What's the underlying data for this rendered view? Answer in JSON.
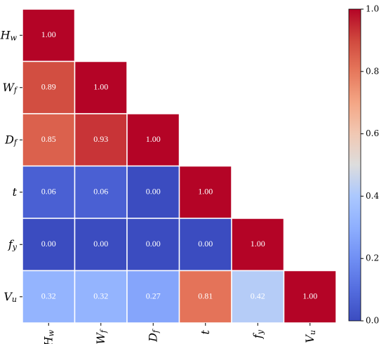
{
  "chart_data": {
    "type": "heatmap",
    "variables": [
      {
        "base": "H",
        "sub": "w"
      },
      {
        "base": "W",
        "sub": "f"
      },
      {
        "base": "D",
        "sub": "f"
      },
      {
        "base": "t",
        "sub": ""
      },
      {
        "base": "f",
        "sub": "y"
      },
      {
        "base": "V",
        "sub": "u"
      }
    ],
    "matrix": [
      [
        1.0,
        null,
        null,
        null,
        null,
        null
      ],
      [
        0.89,
        1.0,
        null,
        null,
        null,
        null
      ],
      [
        0.85,
        0.93,
        1.0,
        null,
        null,
        null
      ],
      [
        0.06,
        0.06,
        0.0,
        1.0,
        null,
        null
      ],
      [
        0.0,
        0.0,
        0.0,
        0.0,
        1.0,
        null
      ],
      [
        0.32,
        0.32,
        0.27,
        0.81,
        0.42,
        1.0
      ]
    ],
    "labels": [
      [
        "1.00",
        "",
        "",
        "",
        "",
        ""
      ],
      [
        "0.89",
        "1.00",
        "",
        "",
        "",
        ""
      ],
      [
        "0.85",
        "0.93",
        "1.00",
        "",
        "",
        ""
      ],
      [
        "0.06",
        "0.06",
        "0.00",
        "1.00",
        "",
        ""
      ],
      [
        "0.00",
        "0.00",
        "0.00",
        "0.00",
        "1.00",
        ""
      ],
      [
        "0.32",
        "0.32",
        "0.27",
        "0.81",
        "0.42",
        "1.00"
      ]
    ],
    "colormap": "coolwarm",
    "colorbar": {
      "range": [
        0.0,
        1.0
      ],
      "ticks": [
        0.0,
        0.2,
        0.4,
        0.6,
        0.8,
        1.0
      ],
      "tick_labels": [
        "0.0",
        "0.2",
        "0.4",
        "0.6",
        "0.8",
        "1.0"
      ],
      "placement": "right"
    },
    "title": "",
    "xlabel": "",
    "ylabel": "",
    "lower_triangle_only": true
  }
}
